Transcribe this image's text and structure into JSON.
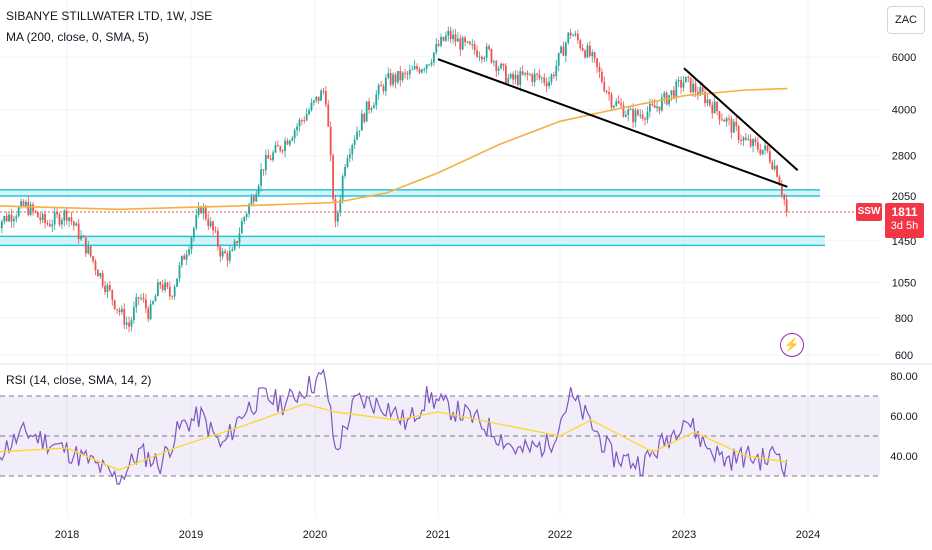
{
  "header": {
    "title": "SIBANYE STILLWATER LTD, 1W, JSE",
    "ma_legend": "MA (200, close, 0, SMA, 5)",
    "rsi_legend": "RSI (14, close, SMA, 14, 2)",
    "currency_button": "ZAC"
  },
  "price_tag": {
    "symbol": "SSW",
    "price": "1811",
    "countdown": "3d 5h"
  },
  "colors": {
    "up": "#26a69a",
    "down": "#ef5350",
    "ma": "#f5b041",
    "rsi": "#7e57c2",
    "rsi_ma": "#fdd835",
    "zone_fill": "#b2ebf2",
    "zone_line": "#26c6da",
    "trendline": "#000000",
    "price_tag": "#f23645",
    "grid": "#f0f3fa"
  },
  "icons": {
    "alert": "lightning-bolt-icon"
  },
  "chart_data": [
    {
      "type": "candlestick",
      "title": "SIBANYE STILLWATER LTD, 1W, JSE",
      "scale": "log",
      "x_ticks": [
        "2018",
        "2019",
        "2020",
        "2021",
        "2022",
        "2023",
        "2024"
      ],
      "y_ticks": [
        "6000",
        "4000",
        "2800",
        "2050",
        "1450",
        "1050",
        "800",
        "600"
      ],
      "ylim": [
        600,
        8000
      ],
      "ohlc_close_path": [
        [
          "2017-06",
          1650
        ],
        [
          "2017-09",
          1900
        ],
        [
          "2017-11",
          1650
        ],
        [
          "2018-01",
          1800
        ],
        [
          "2018-03",
          1350
        ],
        [
          "2018-04",
          1150
        ],
        [
          "2018-06",
          850
        ],
        [
          "2018-07",
          750
        ],
        [
          "2018-08",
          950
        ],
        [
          "2018-09",
          820
        ],
        [
          "2018-10",
          1050
        ],
        [
          "2018-11",
          950
        ],
        [
          "2018-12",
          1200
        ],
        [
          "2019-01",
          1500
        ],
        [
          "2019-02",
          1900
        ],
        [
          "2019-03",
          1600
        ],
        [
          "2019-04",
          1300
        ],
        [
          "2019-05",
          1300
        ],
        [
          "2019-06",
          1700
        ],
        [
          "2019-07",
          2050
        ],
        [
          "2019-08",
          2600
        ],
        [
          "2019-10",
          3100
        ],
        [
          "2019-12",
          3800
        ],
        [
          "2020-02",
          4700
        ],
        [
          "2020-03",
          1600
        ],
        [
          "2020-04",
          2800
        ],
        [
          "2020-06",
          4000
        ],
        [
          "2020-08",
          5000
        ],
        [
          "2020-10",
          5200
        ],
        [
          "2020-12",
          5800
        ],
        [
          "2021-01",
          6500
        ],
        [
          "2021-02",
          7100
        ],
        [
          "2021-04",
          6400
        ],
        [
          "2021-06",
          6200
        ],
        [
          "2021-08",
          5000
        ],
        [
          "2021-10",
          5200
        ],
        [
          "2021-12",
          5000
        ],
        [
          "2022-02",
          7300
        ],
        [
          "2022-04",
          6000
        ],
        [
          "2022-06",
          4300
        ],
        [
          "2022-08",
          3800
        ],
        [
          "2022-10",
          4000
        ],
        [
          "2022-12",
          4600
        ],
        [
          "2023-01",
          5000
        ],
        [
          "2023-03",
          4400
        ],
        [
          "2023-05",
          3700
        ],
        [
          "2023-07",
          3100
        ],
        [
          "2023-09",
          2900
        ],
        [
          "2023-10",
          2500
        ],
        [
          "2023-11",
          1811
        ]
      ],
      "moving_average_200": [
        [
          "2017-06",
          1900
        ],
        [
          "2018-06",
          1850
        ],
        [
          "2019-06",
          1900
        ],
        [
          "2020-03",
          1950
        ],
        [
          "2020-08",
          2100
        ],
        [
          "2021-01",
          2450
        ],
        [
          "2021-07",
          3050
        ],
        [
          "2022-01",
          3650
        ],
        [
          "2022-07",
          4050
        ],
        [
          "2023-01",
          4450
        ],
        [
          "2023-07",
          4650
        ],
        [
          "2023-11",
          4700
        ]
      ],
      "support_zones": [
        [
          2050,
          2150
        ],
        [
          1400,
          1500
        ]
      ],
      "trendlines": [
        {
          "from": [
            "2021-01",
            5900
          ],
          "to": [
            "2023-11",
            2200
          ]
        },
        {
          "from": [
            "2023-01",
            5500
          ],
          "to": [
            "2023-12",
            2500
          ]
        }
      ],
      "last_price": 1811
    },
    {
      "type": "line",
      "title": "RSI (14, close, SMA, 14, 2)",
      "y_ticks": [
        "80.00",
        "60.00",
        "40.00"
      ],
      "ylim": [
        25,
        85
      ],
      "levels": [
        70,
        50,
        30
      ],
      "series": [
        {
          "values": [
            [
              "2017-06",
              40
            ],
            [
              "2017-09",
              52
            ],
            [
              "2017-12",
              45
            ],
            [
              "2018-03",
              38
            ],
            [
              "2018-06",
              28
            ],
            [
              "2018-08",
              42
            ],
            [
              "2018-10",
              36
            ],
            [
              "2018-12",
              55
            ],
            [
              "2019-02",
              60
            ],
            [
              "2019-04",
              44
            ],
            [
              "2019-06",
              62
            ],
            [
              "2019-08",
              70
            ],
            [
              "2019-10",
              66
            ],
            [
              "2019-12",
              74
            ],
            [
              "2020-02",
              80
            ],
            [
              "2020-03",
              42
            ],
            [
              "2020-05",
              68
            ],
            [
              "2020-08",
              65
            ],
            [
              "2020-10",
              56
            ],
            [
              "2020-12",
              70
            ],
            [
              "2021-02",
              64
            ],
            [
              "2021-04",
              60
            ],
            [
              "2021-06",
              54
            ],
            [
              "2021-09",
              42
            ],
            [
              "2021-12",
              46
            ],
            [
              "2022-02",
              70
            ],
            [
              "2022-04",
              56
            ],
            [
              "2022-06",
              40
            ],
            [
              "2022-09",
              36
            ],
            [
              "2022-12",
              52
            ],
            [
              "2023-01",
              60
            ],
            [
              "2023-03",
              46
            ],
            [
              "2023-05",
              38
            ],
            [
              "2023-07",
              40
            ],
            [
              "2023-09",
              38
            ],
            [
              "2023-10",
              43
            ],
            [
              "2023-11",
              33
            ]
          ]
        },
        {
          "values": [
            [
              "2017-06",
              42
            ],
            [
              "2018-01",
              44
            ],
            [
              "2018-06",
              33
            ],
            [
              "2018-12",
              45
            ],
            [
              "2019-06",
              55
            ],
            [
              "2019-12",
              66
            ],
            [
              "2020-03",
              62
            ],
            [
              "2020-09",
              58
            ],
            [
              "2021-01",
              62
            ],
            [
              "2021-07",
              56
            ],
            [
              "2022-01",
              50
            ],
            [
              "2022-04",
              58
            ],
            [
              "2022-10",
              42
            ],
            [
              "2023-02",
              52
            ],
            [
              "2023-07",
              40
            ],
            [
              "2023-11",
              37
            ]
          ]
        }
      ]
    }
  ]
}
